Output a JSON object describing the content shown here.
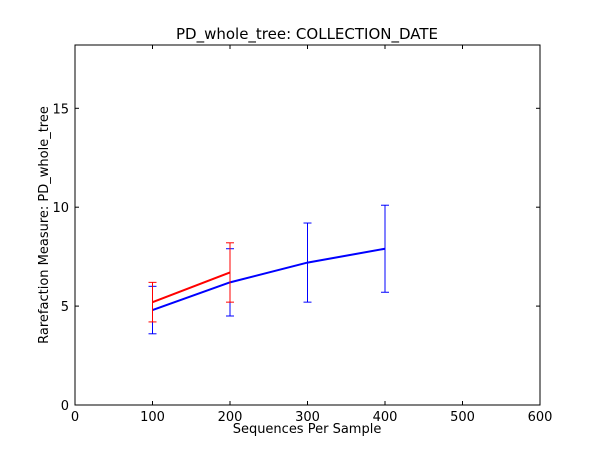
{
  "chart_data": {
    "type": "line",
    "title": "PD_whole_tree: COLLECTION_DATE",
    "xlabel": "Sequences Per Sample",
    "ylabel": "Rarefaction Measure: PD_whole_tree",
    "xlim": [
      0,
      600
    ],
    "ylim": [
      0,
      18.2
    ],
    "xticks": [
      0,
      100,
      200,
      300,
      400,
      500,
      600
    ],
    "yticks": [
      0,
      5,
      10,
      15
    ],
    "grid": false,
    "legend": "none",
    "series": [
      {
        "color": "#0000ff",
        "points": [
          {
            "x": 100,
            "y": 4.8,
            "err_low": 3.6,
            "err_high": 6.0
          },
          {
            "x": 200,
            "y": 6.2,
            "err_low": 4.5,
            "err_high": 7.9
          },
          {
            "x": 300,
            "y": 7.2,
            "err_low": 5.2,
            "err_high": 9.2
          },
          {
            "x": 400,
            "y": 7.9,
            "err_low": 5.7,
            "err_high": 10.1
          }
        ]
      },
      {
        "color": "#ff0000",
        "points": [
          {
            "x": 100,
            "y": 5.2,
            "err_low": 4.2,
            "err_high": 6.2
          },
          {
            "x": 200,
            "y": 6.7,
            "err_low": 5.2,
            "err_high": 8.2
          }
        ]
      }
    ]
  }
}
